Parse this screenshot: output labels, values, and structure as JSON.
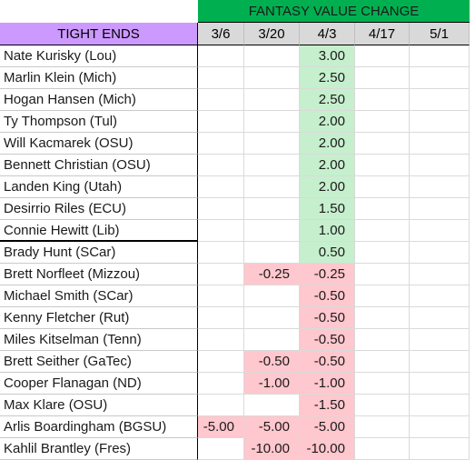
{
  "header": {
    "title": "FANTASY VALUE CHANGE",
    "position_label": "TIGHT ENDS",
    "dates": [
      "3/6",
      "3/20",
      "4/3",
      "4/17",
      "5/1"
    ]
  },
  "colors": {
    "title_bg": "#00b050",
    "position_bg": "#cc99ff",
    "date_bg": "#d9d9d9",
    "positive_bg": "#c6efce",
    "negative_bg": "#ffc7ce"
  },
  "rows": [
    {
      "name": "Nate Kurisky (Lou)",
      "values": [
        "",
        "",
        "3.00",
        "",
        ""
      ]
    },
    {
      "name": "Marlin Klein (Mich)",
      "values": [
        "",
        "",
        "2.50",
        "",
        ""
      ]
    },
    {
      "name": "Hogan Hansen (Mich)",
      "values": [
        "",
        "",
        "2.50",
        "",
        ""
      ]
    },
    {
      "name": "Ty Thompson (Tul)",
      "values": [
        "",
        "",
        "2.00",
        "",
        ""
      ]
    },
    {
      "name": "Will Kacmarek (OSU)",
      "values": [
        "",
        "",
        "2.00",
        "",
        ""
      ]
    },
    {
      "name": "Bennett Christian (OSU)",
      "values": [
        "",
        "",
        "2.00",
        "",
        ""
      ]
    },
    {
      "name": "Landen King (Utah)",
      "values": [
        "",
        "",
        "2.00",
        "",
        ""
      ]
    },
    {
      "name": "Desirrio Riles (ECU)",
      "values": [
        "",
        "",
        "1.50",
        "",
        ""
      ]
    },
    {
      "name": "Connie Hewitt (Lib)",
      "values": [
        "",
        "",
        "1.00",
        "",
        ""
      ]
    },
    {
      "name": "Brady Hunt (SCar)",
      "values": [
        "",
        "",
        "0.50",
        "",
        ""
      ]
    },
    {
      "name": "Brett Norfleet (Mizzou)",
      "values": [
        "",
        "-0.25",
        "-0.25",
        "",
        ""
      ]
    },
    {
      "name": "Michael Smith (SCar)",
      "values": [
        "",
        "",
        "-0.50",
        "",
        ""
      ]
    },
    {
      "name": "Kenny Fletcher (Rut)",
      "values": [
        "",
        "",
        "-0.50",
        "",
        ""
      ]
    },
    {
      "name": "Miles Kitselman (Tenn)",
      "values": [
        "",
        "",
        "-0.50",
        "",
        ""
      ]
    },
    {
      "name": "Brett Seither (GaTec)",
      "values": [
        "",
        "-0.50",
        "-0.50",
        "",
        ""
      ]
    },
    {
      "name": "Cooper Flanagan (ND)",
      "values": [
        "",
        "-1.00",
        "-1.00",
        "",
        ""
      ]
    },
    {
      "name": "Max Klare (OSU)",
      "values": [
        "",
        "",
        "-1.50",
        "",
        ""
      ]
    },
    {
      "name": "Arlis Boardingham (BGSU)",
      "values": [
        "-5.00",
        "-5.00",
        "-5.00",
        "",
        ""
      ]
    },
    {
      "name": "Kahlil Brantley (Fres)",
      "values": [
        "",
        "-10.00",
        "-10.00",
        "",
        ""
      ]
    }
  ]
}
